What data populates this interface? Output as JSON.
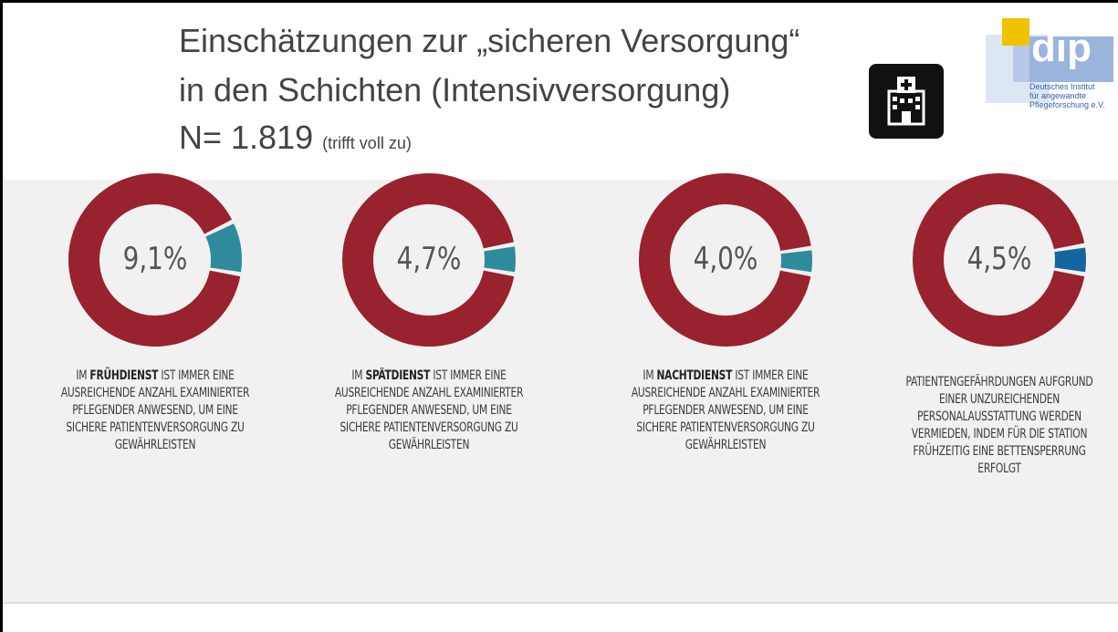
{
  "header": {
    "title_lines": [
      "Einschätzungen zur „sicheren Versorgung“",
      "in den Schichten (Intensivversorgung)"
    ],
    "n": "N= 1.819",
    "n_note": "(trifft voll zu)"
  },
  "logo": {
    "name": "dip",
    "lines": [
      "Deutsches Institut",
      "für angewandte",
      "Pflegeforschung e.V."
    ]
  },
  "chart_data": [
    {
      "type": "donut",
      "values": [
        9.1
      ],
      "value_labels": [
        "9,1%"
      ],
      "color": "#2e8b9c",
      "caption": [
        "IM ",
        "FRÜHDIENST",
        " IST IMMER EINE AUSREICHENDE ANZAHL EXAMINIERTER PFLEGENDER ANWESEND, UM EINE SICHERE PATIENTENVERSORGUNG ZU GEWÄHRLEISTEN"
      ]
    },
    {
      "type": "donut",
      "values": [
        4.7
      ],
      "value_labels": [
        "4,7%"
      ],
      "color": "#2e8b9c",
      "caption": [
        "IM ",
        "SPÄTDIENST",
        " IST IMMER EINE AUSREICHENDE ANZAHL EXAMINIERTER PFLEGENDER ANWESEND, UM EINE SICHERE PATIENTENVERSORGUNG ZU GEWÄHRLEISTEN"
      ]
    },
    {
      "type": "donut",
      "values": [
        4.0
      ],
      "value_labels": [
        "4,0%"
      ],
      "color": "#2e8b9c",
      "caption": [
        "IM ",
        "NACHTDIENST",
        " IST IMMER EINE AUSREICHENDE ANZAHL EXAMINIERTER PFLEGENDER ANWESEND, UM EINE SICHERE PATIENTENVERSORGUNG ZU GEWÄHRLEISTEN"
      ]
    },
    {
      "type": "donut",
      "values": [
        4.5
      ],
      "value_labels": [
        "4,5%"
      ],
      "color": "#1565a0",
      "caption": [
        "PATIENTENGEFÄHRDUNGEN AUFGRUND EINER UNZUREICHENDEN PERSONALAUSSTATTUNG WERDEN VERMIEDEN, INDEM FÜR DIE STATION FRÜHZEITIG EINE BETTENSPERRUNG ERFOLGT"
      ]
    }
  ]
}
